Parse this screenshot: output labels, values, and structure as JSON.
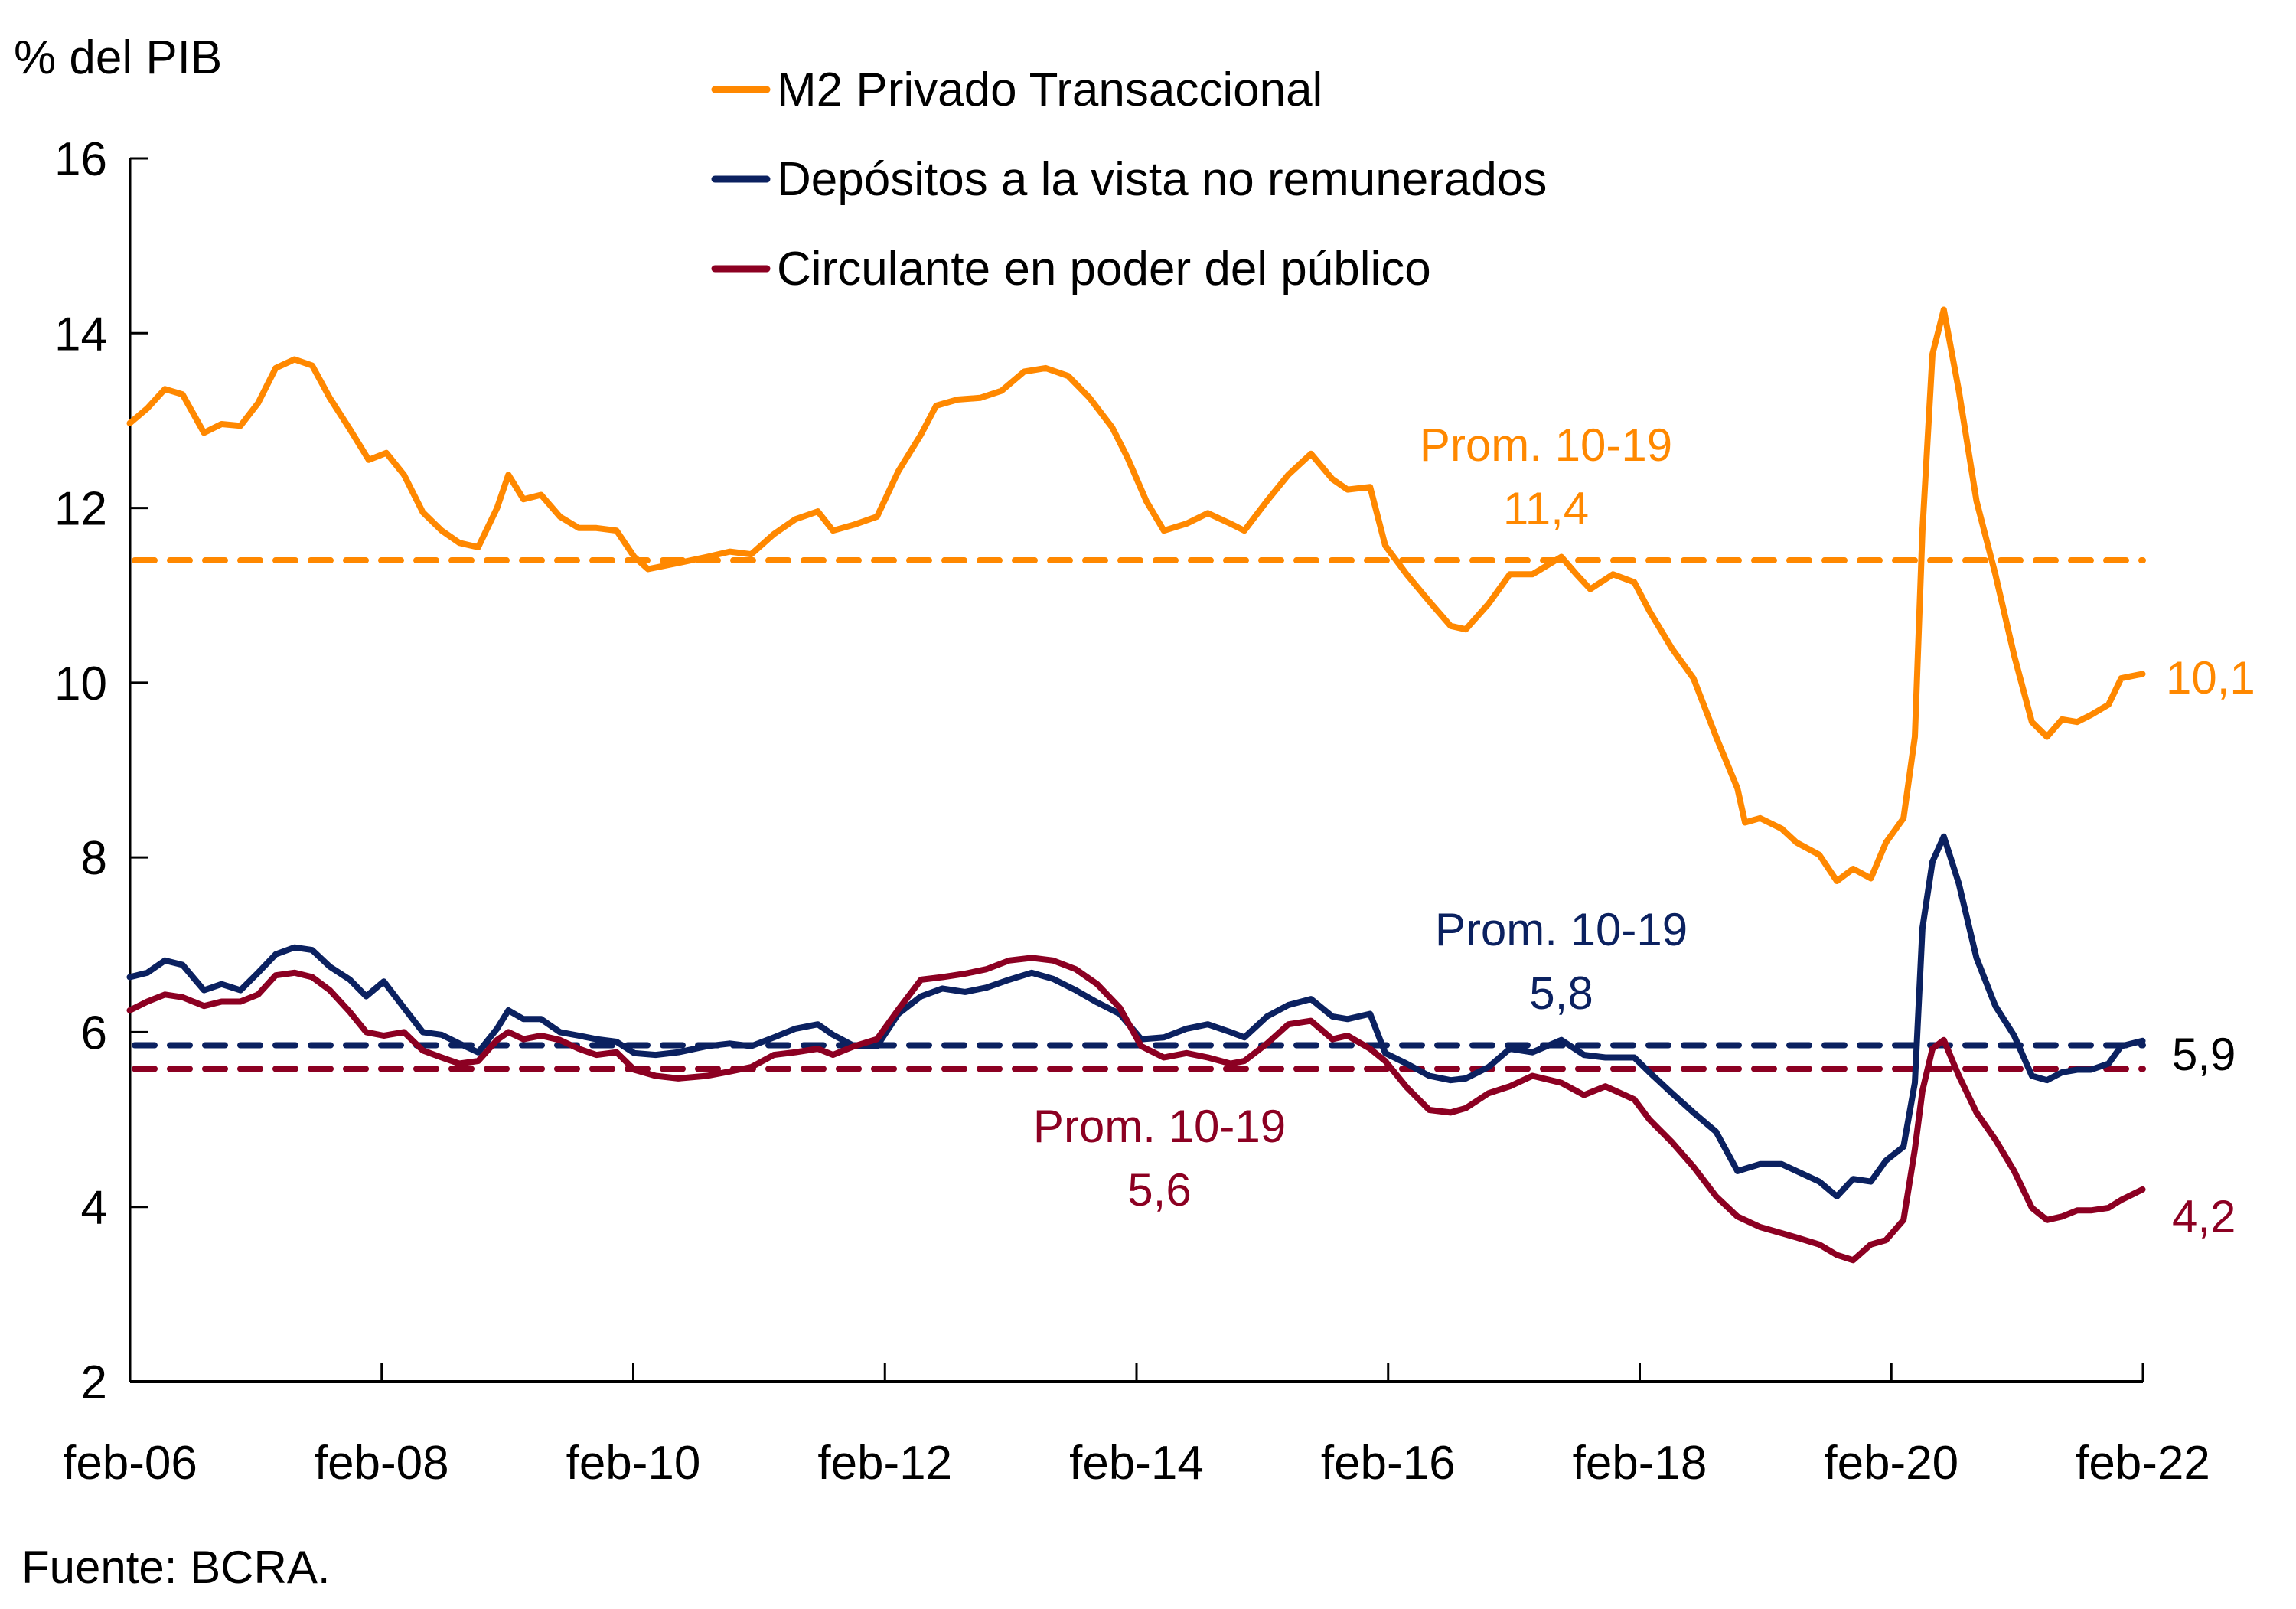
{
  "chart_data": {
    "type": "line",
    "title": "",
    "ylabel": "% del PIB",
    "xlabel": "",
    "ylim": [
      2,
      16
    ],
    "yticks": [
      2,
      4,
      6,
      8,
      10,
      12,
      14,
      16
    ],
    "ytick_labels": [
      "2",
      "4",
      "6",
      "8",
      "10",
      "12",
      "14",
      "16"
    ],
    "xlim": [
      2006.083,
      2022.083
    ],
    "xticks": [
      2006.083,
      2008.083,
      2010.083,
      2012.083,
      2014.083,
      2016.083,
      2018.083,
      2020.083,
      2022.083
    ],
    "xtick_labels": [
      "feb-06",
      "feb-08",
      "feb-10",
      "feb-12",
      "feb-14",
      "feb-16",
      "feb-18",
      "feb-20",
      "feb-22"
    ],
    "grid": false,
    "legend_position": "top-center",
    "source": "Fuente: BCRA.",
    "colors": {
      "m2": "#FF8800",
      "depositos": "#0B2160",
      "circulante": "#8C0022",
      "end_label_depositos": "#000000"
    },
    "series": [
      {
        "key": "m2",
        "name": "M2 Privado Transaccional",
        "color": "#FF8800",
        "average": {
          "label": "Prom. 10-19",
          "value": 11.4,
          "value_label": "11,4"
        },
        "end_label": "10,1",
        "x": [
          2006.08,
          2006.22,
          2006.36,
          2006.5,
          2006.67,
          2006.81,
          2006.96,
          2007.1,
          2007.24,
          2007.39,
          2007.53,
          2007.67,
          2007.83,
          2007.98,
          2008.12,
          2008.26,
          2008.41,
          2008.56,
          2008.7,
          2008.85,
          2009.0,
          2009.09,
          2009.21,
          2009.35,
          2009.5,
          2009.65,
          2009.79,
          2009.95,
          2010.09,
          2010.2,
          2010.44,
          2010.67,
          2010.85,
          2011.02,
          2011.2,
          2011.37,
          2011.55,
          2011.67,
          2011.84,
          2012.02,
          2012.19,
          2012.37,
          2012.49,
          2012.66,
          2012.84,
          2013.01,
          2013.19,
          2013.36,
          2013.54,
          2013.71,
          2013.89,
          2014.01,
          2014.16,
          2014.3,
          2014.48,
          2014.65,
          2014.83,
          2014.94,
          2015.12,
          2015.29,
          2015.47,
          2015.64,
          2015.76,
          2015.94,
          2016.06,
          2016.23,
          2016.41,
          2016.58,
          2016.7,
          2016.88,
          2017.05,
          2017.23,
          2017.46,
          2017.58,
          2017.69,
          2017.87,
          2018.04,
          2018.16,
          2018.34,
          2018.51,
          2018.69,
          2018.86,
          2018.92,
          2019.04,
          2019.21,
          2019.33,
          2019.51,
          2019.65,
          2019.78,
          2019.92,
          2020.04,
          2020.18,
          2020.27,
          2020.33,
          2020.41,
          2020.5,
          2020.62,
          2020.76,
          2020.91,
          2021.06,
          2021.2,
          2021.32,
          2021.44,
          2021.56,
          2021.67,
          2021.81,
          2021.91,
          2022.08
        ],
        "values": [
          12.97,
          13.14,
          13.36,
          13.3,
          12.86,
          12.96,
          12.94,
          13.2,
          13.6,
          13.7,
          13.63,
          13.26,
          12.9,
          12.55,
          12.63,
          12.38,
          11.95,
          11.74,
          11.6,
          11.55,
          12.0,
          12.38,
          12.1,
          12.15,
          11.9,
          11.77,
          11.77,
          11.74,
          11.44,
          11.3,
          11.37,
          11.44,
          11.5,
          11.47,
          11.7,
          11.87,
          11.96,
          11.74,
          11.81,
          11.9,
          12.42,
          12.84,
          13.17,
          13.24,
          13.26,
          13.34,
          13.56,
          13.6,
          13.51,
          13.26,
          12.92,
          12.58,
          12.08,
          11.74,
          11.82,
          11.94,
          11.82,
          11.74,
          12.08,
          12.38,
          12.62,
          12.33,
          12.21,
          12.24,
          11.57,
          11.24,
          10.93,
          10.65,
          10.61,
          10.9,
          11.24,
          11.24,
          11.44,
          11.24,
          11.07,
          11.24,
          11.15,
          10.82,
          10.39,
          10.05,
          9.38,
          8.79,
          8.4,
          8.45,
          8.33,
          8.17,
          8.03,
          7.73,
          7.87,
          7.76,
          8.17,
          8.45,
          9.38,
          11.74,
          13.76,
          14.27,
          13.34,
          12.08,
          11.24,
          10.31,
          9.55,
          9.38,
          9.58,
          9.55,
          9.63,
          9.75,
          10.05,
          10.1
        ]
      },
      {
        "key": "depositos",
        "name": "Depósitos a la vista no remunerados",
        "color": "#0B2160",
        "average": {
          "label": "Prom. 10-19",
          "value": 5.85,
          "value_label": "5,8"
        },
        "end_label": "5,9",
        "x": [
          2006.08,
          2006.22,
          2006.36,
          2006.5,
          2006.67,
          2006.81,
          2006.96,
          2007.1,
          2007.24,
          2007.39,
          2007.53,
          2007.67,
          2007.83,
          2007.96,
          2008.1,
          2008.26,
          2008.41,
          2008.56,
          2008.7,
          2008.85,
          2009.0,
          2009.09,
          2009.21,
          2009.35,
          2009.5,
          2009.65,
          2009.79,
          2009.95,
          2010.09,
          2010.26,
          2010.44,
          2010.67,
          2010.85,
          2011.02,
          2011.2,
          2011.37,
          2011.55,
          2011.67,
          2011.84,
          2012.02,
          2012.19,
          2012.37,
          2012.54,
          2012.72,
          2012.89,
          2013.07,
          2013.25,
          2013.42,
          2013.6,
          2013.77,
          2013.95,
          2014.12,
          2014.3,
          2014.48,
          2014.65,
          2014.83,
          2014.94,
          2015.12,
          2015.29,
          2015.47,
          2015.64,
          2015.76,
          2015.94,
          2016.06,
          2016.23,
          2016.41,
          2016.58,
          2016.7,
          2016.88,
          2017.05,
          2017.23,
          2017.46,
          2017.64,
          2017.81,
          2018.04,
          2018.16,
          2018.34,
          2018.51,
          2018.69,
          2018.86,
          2019.04,
          2019.21,
          2019.33,
          2019.51,
          2019.65,
          2019.78,
          2019.92,
          2020.04,
          2020.18,
          2020.27,
          2020.33,
          2020.41,
          2020.5,
          2020.62,
          2020.76,
          2020.91,
          2021.06,
          2021.2,
          2021.32,
          2021.44,
          2021.56,
          2021.67,
          2021.81,
          2021.91,
          2022.08
        ],
        "values": [
          6.63,
          6.68,
          6.82,
          6.77,
          6.48,
          6.55,
          6.48,
          6.68,
          6.89,
          6.97,
          6.94,
          6.75,
          6.6,
          6.41,
          6.58,
          6.28,
          6.0,
          5.97,
          5.87,
          5.77,
          6.04,
          6.25,
          6.15,
          6.15,
          6.0,
          5.96,
          5.92,
          5.89,
          5.76,
          5.74,
          5.77,
          5.84,
          5.87,
          5.84,
          5.94,
          6.04,
          6.09,
          5.97,
          5.84,
          5.84,
          6.21,
          6.41,
          6.5,
          6.46,
          6.51,
          6.6,
          6.68,
          6.61,
          6.48,
          6.34,
          6.21,
          5.92,
          5.94,
          6.04,
          6.09,
          6.0,
          5.94,
          6.18,
          6.31,
          6.38,
          6.18,
          6.15,
          6.21,
          5.76,
          5.64,
          5.5,
          5.45,
          5.47,
          5.6,
          5.81,
          5.77,
          5.91,
          5.74,
          5.71,
          5.71,
          5.54,
          5.3,
          5.08,
          4.86,
          4.41,
          4.49,
          4.49,
          4.41,
          4.29,
          4.12,
          4.32,
          4.29,
          4.53,
          4.69,
          5.42,
          7.19,
          7.95,
          8.24,
          7.7,
          6.85,
          6.3,
          5.96,
          5.5,
          5.45,
          5.54,
          5.57,
          5.57,
          5.64,
          5.84,
          5.9
        ]
      },
      {
        "key": "circulante",
        "name": "Circulante en poder del público",
        "color": "#8C0022",
        "average": {
          "label": "Prom. 10-19",
          "value": 5.58,
          "value_label": "5,6"
        },
        "end_label": "4,2",
        "x": [
          2006.08,
          2006.22,
          2006.36,
          2006.5,
          2006.67,
          2006.81,
          2006.96,
          2007.1,
          2007.24,
          2007.39,
          2007.53,
          2007.67,
          2007.83,
          2007.96,
          2008.1,
          2008.26,
          2008.41,
          2008.56,
          2008.7,
          2008.85,
          2009.0,
          2009.09,
          2009.21,
          2009.35,
          2009.5,
          2009.65,
          2009.79,
          2009.95,
          2010.09,
          2010.26,
          2010.44,
          2010.67,
          2010.85,
          2011.02,
          2011.2,
          2011.37,
          2011.55,
          2011.67,
          2011.84,
          2012.02,
          2012.19,
          2012.37,
          2012.54,
          2012.72,
          2012.89,
          2013.07,
          2013.25,
          2013.42,
          2013.6,
          2013.77,
          2013.95,
          2014.12,
          2014.3,
          2014.48,
          2014.65,
          2014.83,
          2014.94,
          2015.12,
          2015.29,
          2015.47,
          2015.64,
          2015.76,
          2015.94,
          2016.06,
          2016.23,
          2016.41,
          2016.58,
          2016.7,
          2016.88,
          2017.05,
          2017.23,
          2017.46,
          2017.64,
          2017.81,
          2018.04,
          2018.16,
          2018.34,
          2018.51,
          2018.69,
          2018.86,
          2019.04,
          2019.21,
          2019.33,
          2019.51,
          2019.65,
          2019.78,
          2019.92,
          2020.04,
          2020.18,
          2020.27,
          2020.33,
          2020.41,
          2020.5,
          2020.62,
          2020.76,
          2020.91,
          2021.06,
          2021.2,
          2021.32,
          2021.44,
          2021.56,
          2021.67,
          2021.81,
          2021.91,
          2022.08
        ],
        "values": [
          6.25,
          6.35,
          6.43,
          6.4,
          6.3,
          6.35,
          6.35,
          6.43,
          6.65,
          6.68,
          6.63,
          6.48,
          6.23,
          6.0,
          5.96,
          6.0,
          5.79,
          5.71,
          5.64,
          5.67,
          5.91,
          6.0,
          5.92,
          5.96,
          5.91,
          5.81,
          5.74,
          5.77,
          5.57,
          5.5,
          5.47,
          5.5,
          5.55,
          5.6,
          5.74,
          5.77,
          5.81,
          5.74,
          5.84,
          5.92,
          6.26,
          6.6,
          6.63,
          6.67,
          6.72,
          6.82,
          6.85,
          6.82,
          6.72,
          6.55,
          6.28,
          5.84,
          5.71,
          5.76,
          5.71,
          5.64,
          5.67,
          5.87,
          6.09,
          6.13,
          5.92,
          5.96,
          5.81,
          5.67,
          5.37,
          5.11,
          5.08,
          5.13,
          5.3,
          5.38,
          5.5,
          5.42,
          5.28,
          5.38,
          5.23,
          5.0,
          4.74,
          4.46,
          4.12,
          3.89,
          3.77,
          3.7,
          3.65,
          3.57,
          3.45,
          3.39,
          3.57,
          3.62,
          3.85,
          4.66,
          5.33,
          5.81,
          5.91,
          5.5,
          5.08,
          4.77,
          4.41,
          3.99,
          3.85,
          3.89,
          3.96,
          3.96,
          3.99,
          4.08,
          4.2
        ]
      }
    ]
  }
}
